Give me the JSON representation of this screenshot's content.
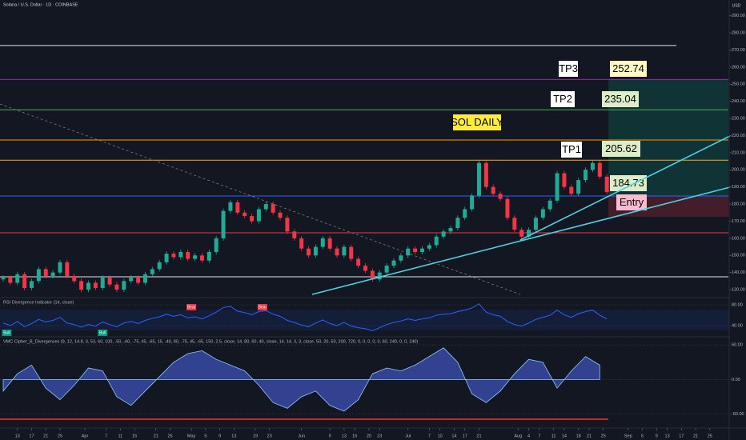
{
  "header": {
    "title": "Solana / U.S. Dollar · 1D · COINBASE",
    "currency": "USD"
  },
  "chart_data": [
    {
      "type": "candlestick",
      "annotation": "SOL DAILY",
      "open": 136,
      "close": [
        137,
        134,
        139,
        131,
        135,
        142,
        138,
        140,
        146,
        138,
        135,
        130,
        134,
        131,
        137,
        133,
        130,
        135,
        137,
        134,
        139,
        142,
        146,
        151,
        149,
        152,
        148,
        150,
        147,
        152,
        160,
        176,
        181,
        175,
        173,
        170,
        177,
        180,
        175,
        172,
        164,
        160,
        154,
        150,
        155,
        160,
        154,
        150,
        155,
        148,
        144,
        141,
        136,
        140,
        144,
        147,
        150,
        154,
        152,
        154,
        156,
        161,
        164,
        166,
        172,
        177,
        185,
        204,
        190,
        186,
        183,
        172,
        165,
        161,
        165,
        172,
        177,
        182,
        198,
        190,
        186,
        194,
        200,
        204,
        196,
        187
      ],
      "up_color": "#22ab94",
      "down_color": "#f23645",
      "xlim": [
        0,
        102
      ],
      "ylim": [
        126.3,
        299.2
      ],
      "yticks": [
        {
          "value": 130,
          "label": "130.00"
        },
        {
          "value": 140,
          "label": "140.00"
        },
        {
          "value": 150,
          "label": "150.00"
        },
        {
          "value": 160,
          "label": "160.00"
        },
        {
          "value": 170,
          "label": "170.00"
        },
        {
          "value": 180,
          "label": "180.00"
        },
        {
          "value": 190,
          "label": "190.00"
        },
        {
          "value": 200,
          "label": "200.00"
        },
        {
          "value": 210,
          "label": "210.00"
        },
        {
          "value": 220,
          "label": "220.00"
        },
        {
          "value": 230,
          "label": "230.00"
        },
        {
          "value": 240,
          "label": "240.00"
        },
        {
          "value": 250,
          "label": "250.00"
        },
        {
          "value": 260,
          "label": "260.00"
        },
        {
          "value": 270,
          "label": "270.00"
        },
        {
          "value": 280,
          "label": "280.00"
        },
        {
          "value": 290,
          "label": "290.00"
        }
      ],
      "xticks": [
        {
          "value": 2,
          "label": "13"
        },
        {
          "value": 4,
          "label": "17"
        },
        {
          "value": 6,
          "label": "21"
        },
        {
          "value": 8,
          "label": "25"
        },
        {
          "value": 11.5,
          "label": "Apr"
        },
        {
          "value": 14.5,
          "label": "7"
        },
        {
          "value": 16.5,
          "label": "11"
        },
        {
          "value": 18.5,
          "label": "15"
        },
        {
          "value": 21.5,
          "label": "21"
        },
        {
          "value": 23.5,
          "label": "25"
        },
        {
          "value": 26.5,
          "label": "May"
        },
        {
          "value": 28.5,
          "label": "5"
        },
        {
          "value": 30.5,
          "label": "9"
        },
        {
          "value": 32.5,
          "label": "13"
        },
        {
          "value": 35.5,
          "label": "19"
        },
        {
          "value": 37.5,
          "label": "23"
        },
        {
          "value": 42,
          "label": "Jun"
        },
        {
          "value": 46,
          "label": "9"
        },
        {
          "value": 48,
          "label": "13"
        },
        {
          "value": 49.5,
          "label": "16"
        },
        {
          "value": 51.5,
          "label": "20"
        },
        {
          "value": 53,
          "label": "23"
        },
        {
          "value": 57,
          "label": "Jul"
        },
        {
          "value": 60,
          "label": "7"
        },
        {
          "value": 61.5,
          "label": "10"
        },
        {
          "value": 63.5,
          "label": "14"
        },
        {
          "value": 65,
          "label": "17"
        },
        {
          "value": 67,
          "label": "21"
        },
        {
          "value": 72.5,
          "label": "Aug"
        },
        {
          "value": 74,
          "label": "4"
        },
        {
          "value": 75.5,
          "label": "7"
        },
        {
          "value": 77.5,
          "label": "11"
        },
        {
          "value": 79,
          "label": "14"
        },
        {
          "value": 81,
          "label": "18"
        },
        {
          "value": 82.5,
          "label": "21"
        },
        {
          "value": 84.5,
          "label": "25"
        },
        {
          "value": 88,
          "label": "Sep"
        },
        {
          "value": 90,
          "label": "5"
        },
        {
          "value": 92,
          "label": "9"
        },
        {
          "value": 93.5,
          "label": "13"
        },
        {
          "value": 95.5,
          "label": "17"
        },
        {
          "value": 97.5,
          "label": "21"
        },
        {
          "value": 99.5,
          "label": "25"
        }
      ],
      "levels": [
        {
          "name": "TP3",
          "value": 252.74,
          "color": "#9c27b0",
          "fill": "#fff9c4"
        },
        {
          "name": "TP2",
          "value": 235.04,
          "color": "#4caf50",
          "fill": "#dcedc8"
        },
        {
          "name": "TP1",
          "value": 205.62,
          "color": "#f9a825",
          "fill": "#dcedc8"
        },
        {
          "name": "Entry",
          "value": 184.73,
          "color": "#2962ff",
          "fill": "#dcedc8"
        }
      ],
      "lines": [
        {
          "value": 272.6,
          "color": "#e0e3eb"
        },
        {
          "value": 217.4,
          "color": "#ff9800"
        },
        {
          "value": 163.2,
          "color": "#f23645"
        },
        {
          "value": 137.5,
          "color": "#e0e3eb"
        }
      ],
      "stop": 172.6
    },
    {
      "type": "line",
      "title": "RSI Divergence Indicator (14, close)",
      "color": "#2962ff",
      "values": [
        45,
        40,
        48,
        38,
        44,
        52,
        47,
        50,
        56,
        45,
        42,
        37,
        42,
        39,
        47,
        42,
        38,
        45,
        48,
        44,
        50,
        54,
        57,
        62,
        58,
        61,
        55,
        57,
        53,
        59,
        66,
        75,
        77,
        68,
        65,
        61,
        67,
        69,
        62,
        58,
        50,
        46,
        41,
        38,
        45,
        51,
        44,
        40,
        46,
        39,
        36,
        34,
        30,
        36,
        42,
        46,
        49,
        53,
        50,
        53,
        55,
        60,
        62,
        63,
        67,
        70,
        74,
        82,
        66,
        61,
        58,
        48,
        42,
        39,
        45,
        52,
        56,
        60,
        70,
        61,
        56,
        63,
        67,
        70,
        60,
        53
      ],
      "xlim": [
        0,
        102
      ],
      "ylim": [
        23,
        91
      ],
      "yticks": [
        {
          "value": 80,
          "label": "80.00"
        },
        {
          "value": 40,
          "label": "40.00"
        }
      ],
      "signals": [
        {
          "label": "Bull",
          "x": 0.5,
          "position": "bottom",
          "color": "#089981"
        },
        {
          "label": "Bull",
          "x": 14,
          "position": "bottom",
          "color": "#089981"
        },
        {
          "label": "Bear",
          "x": 26.5,
          "position": "top",
          "color": "#f23645"
        },
        {
          "label": "Bear",
          "x": 36.5,
          "position": "top",
          "color": "#f23645"
        }
      ]
    },
    {
      "type": "area",
      "title": "VMC Cipher_B_Divergences (9, 12, 14.8, 3, 53, 60, 100, -50, -60, -75, 45, -65, 15, -40, 80, -75, 45, -65, 150, 2.5, close, 14, 80, 60, 40, close, 14, 14, 3, 3, close, 50, 20, 50, 200, 720, 0, 0, 0, 0, 0, 60, 240, 0, 0, 240)",
      "color": "#3f51b5",
      "values": [
        -20,
        10,
        25,
        -15,
        -35,
        -10,
        20,
        15,
        -30,
        -45,
        -20,
        5,
        30,
        45,
        50,
        35,
        25,
        15,
        -10,
        -40,
        -50,
        -30,
        -20,
        -45,
        -55,
        -35,
        10,
        20,
        15,
        25,
        40,
        55,
        30,
        -25,
        -40,
        -20,
        10,
        35,
        30,
        -15,
        15,
        40,
        25
      ],
      "xlim": [
        0,
        51
      ],
      "ylim": [
        -80,
        70
      ],
      "yticks": [
        {
          "value": 60,
          "label": "60.00"
        },
        {
          "value": 0,
          "label": "0.00"
        },
        {
          "value": -60,
          "label": "-60.00"
        }
      ]
    }
  ]
}
